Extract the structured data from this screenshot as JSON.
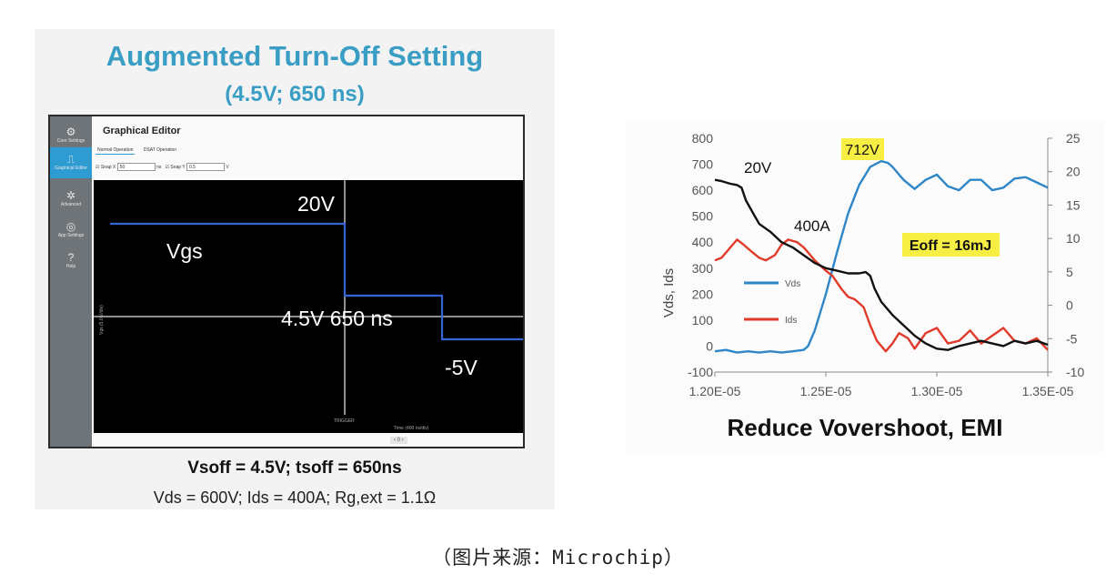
{
  "left_panel": {
    "title": "Augmented Turn-Off Setting",
    "subtitle": "(4.5V; 650 ns)",
    "app": {
      "title": "Graphical Editor",
      "sidebar": [
        {
          "icon": "gear-icon",
          "label": "Core Settings"
        },
        {
          "icon": "waveform-icon",
          "label": "Graphical Editor"
        },
        {
          "icon": "gears-icon",
          "label": "Advanced"
        },
        {
          "icon": "settings-circle-icon",
          "label": "App Settings"
        },
        {
          "icon": "help-icon",
          "label": "Help"
        }
      ],
      "tabs": [
        "Normal Operation",
        "DSAT Operation"
      ],
      "snap_x": {
        "label": "Snap X",
        "value": "50",
        "unit": "ns"
      },
      "snap_y": {
        "label": "Snap Y",
        "value": "0.5",
        "unit": "V"
      },
      "scope_labels": {
        "v20": "20V",
        "vgs": "Vgs",
        "mid": "4.5V 650 ns",
        "vneg": "-5V",
        "trigger": "TRIGGER",
        "xaxis": "Time (400 ns/div)",
        "yaxis": "Vgs (5.0 V/div)"
      },
      "pager": "‹  0  ›"
    },
    "line1": "Vsoff = 4.5V; tsoff = 650ns",
    "line2": "Vds = 600V; Ids = 400A; Rg,ext = 1.1Ω"
  },
  "chart_data": {
    "type": "line",
    "title": "Reduce Vovershoot, EMI",
    "ylabel": "Vds, Ids",
    "xlim": [
      1.2e-05,
      1.35e-05
    ],
    "ylim": [
      -100,
      800
    ],
    "y2lim": [
      -10,
      25
    ],
    "x_ticks": [
      "1.20E-05",
      "1.25E-05",
      "1.30E-05",
      "1.35E-05"
    ],
    "y_ticks": [
      "800",
      "700",
      "600",
      "500",
      "400",
      "300",
      "200",
      "100",
      "0",
      "-100"
    ],
    "y2_ticks": [
      "25",
      "20",
      "15",
      "10",
      "5",
      "0",
      "-5",
      "-10"
    ],
    "legend": [
      {
        "name": "Vds",
        "color": "#2e86c8"
      },
      {
        "name": "Ids",
        "color": "#e03a2a"
      }
    ],
    "annotations": {
      "peak": "712V",
      "v20": "20V",
      "a400": "400A",
      "eoff": "Eoff = 16mJ"
    },
    "series": [
      {
        "name": "Vds",
        "color": "#2e86c8",
        "axis": "left",
        "x": [
          1.2e-05,
          1.205e-05,
          1.21e-05,
          1.215e-05,
          1.22e-05,
          1.225e-05,
          1.23e-05,
          1.235e-05,
          1.24e-05,
          1.242e-05,
          1.245e-05,
          1.25e-05,
          1.255e-05,
          1.26e-05,
          1.265e-05,
          1.27e-05,
          1.275e-05,
          1.278e-05,
          1.28e-05,
          1.285e-05,
          1.29e-05,
          1.295e-05,
          1.3e-05,
          1.305e-05,
          1.31e-05,
          1.315e-05,
          1.32e-05,
          1.325e-05,
          1.33e-05,
          1.335e-05,
          1.34e-05,
          1.345e-05,
          1.35e-05
        ],
        "y": [
          -20,
          -15,
          -25,
          -20,
          -25,
          -20,
          -25,
          -20,
          -15,
          0,
          60,
          200,
          360,
          510,
          620,
          690,
          712,
          705,
          690,
          640,
          605,
          640,
          660,
          615,
          600,
          640,
          640,
          600,
          610,
          645,
          650,
          630,
          610
        ]
      },
      {
        "name": "Ids",
        "color": "#e03a2a",
        "axis": "left",
        "x": [
          1.2e-05,
          1.203e-05,
          1.207e-05,
          1.21e-05,
          1.213e-05,
          1.217e-05,
          1.22e-05,
          1.223e-05,
          1.227e-05,
          1.23e-05,
          1.233e-05,
          1.237e-05,
          1.24e-05,
          1.245e-05,
          1.25e-05,
          1.253e-05,
          1.257e-05,
          1.26e-05,
          1.263e-05,
          1.267e-05,
          1.27e-05,
          1.273e-05,
          1.277e-05,
          1.28e-05,
          1.283e-05,
          1.287e-05,
          1.29e-05,
          1.295e-05,
          1.3e-05,
          1.305e-05,
          1.31e-05,
          1.315e-05,
          1.32e-05,
          1.325e-05,
          1.33e-05,
          1.335e-05,
          1.34e-05,
          1.345e-05,
          1.35e-05
        ],
        "y": [
          330,
          340,
          380,
          410,
          390,
          360,
          340,
          330,
          350,
          390,
          410,
          400,
          380,
          330,
          290,
          270,
          220,
          190,
          180,
          150,
          80,
          20,
          -20,
          10,
          50,
          30,
          -10,
          50,
          70,
          10,
          20,
          60,
          10,
          40,
          70,
          20,
          10,
          30,
          -15
        ]
      },
      {
        "name": "",
        "color": "#111111",
        "axis": "left",
        "x": [
          1.2e-05,
          1.203e-05,
          1.207e-05,
          1.21e-05,
          1.212e-05,
          1.214e-05,
          1.218e-05,
          1.22e-05,
          1.225e-05,
          1.23e-05,
          1.235e-05,
          1.24e-05,
          1.245e-05,
          1.25e-05,
          1.255e-05,
          1.26e-05,
          1.265e-05,
          1.268e-05,
          1.27e-05,
          1.272e-05,
          1.275e-05,
          1.28e-05,
          1.285e-05,
          1.29e-05,
          1.295e-05,
          1.3e-05,
          1.305e-05,
          1.31e-05,
          1.315e-05,
          1.32e-05,
          1.325e-05,
          1.33e-05,
          1.335e-05,
          1.34e-05,
          1.345e-05,
          1.35e-05
        ],
        "y": [
          640,
          635,
          625,
          620,
          610,
          560,
          500,
          470,
          440,
          400,
          380,
          350,
          320,
          300,
          290,
          280,
          280,
          285,
          270,
          220,
          170,
          120,
          80,
          40,
          10,
          -10,
          -15,
          0,
          10,
          20,
          10,
          0,
          20,
          10,
          20,
          5
        ]
      }
    ]
  },
  "caption": "（图片来源：Microchip）"
}
